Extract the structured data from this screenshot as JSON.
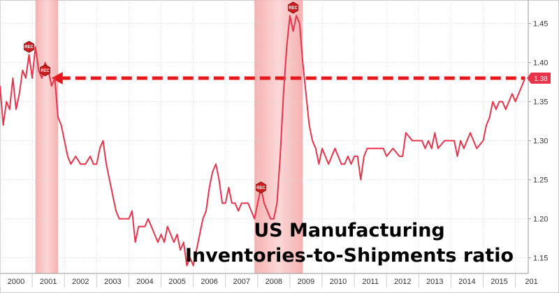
{
  "chart_data": {
    "type": "line",
    "title_lines": [
      "US Manufacturing",
      "Inventories-to-Shipments ratio"
    ],
    "xlabel": "",
    "ylabel": "",
    "x_tick_labels": [
      "2000",
      "2001",
      "2002",
      "2003",
      "2004",
      "2005",
      "2006",
      "2007",
      "2008",
      "2009",
      "2010",
      "2011",
      "2012",
      "2013",
      "2014",
      "2015",
      "201"
    ],
    "xlim": [
      2000.0,
      2016.4
    ],
    "ylim": [
      1.13,
      1.48
    ],
    "y_ticks": [
      1.15,
      1.2,
      1.25,
      1.3,
      1.35,
      1.4,
      1.45
    ],
    "y_tick_labels": [
      "1.15",
      "1.20",
      "1.25",
      "1.30",
      "1.35",
      "1.40",
      "1.45"
    ],
    "grid": true,
    "recessions": [
      {
        "start": 2001.1,
        "end": 2001.8
      },
      {
        "start": 2007.9,
        "end": 2009.4
      }
    ],
    "recession_markers": [
      {
        "label": "REC",
        "x": 2000.9,
        "y": 1.42
      },
      {
        "label": "REC",
        "x": 2001.4,
        "y": 1.39
      },
      {
        "label": "REC",
        "x": 2008.1,
        "y": 1.24
      },
      {
        "label": "REC",
        "x": 2009.1,
        "y": 1.48
      }
    ],
    "reference_line": {
      "y": 1.38,
      "x_start": 2001.6,
      "x_end": 2016.3,
      "style": "dashed-arrow",
      "color": "#e31a1c"
    },
    "last_value_label": "1.38",
    "series": [
      {
        "color": "#e8344a",
        "x": [
          2000.0,
          2000.1,
          2000.2,
          2000.3,
          2000.4,
          2000.5,
          2000.6,
          2000.7,
          2000.8,
          2000.9,
          2001.0,
          2001.1,
          2001.2,
          2001.3,
          2001.4,
          2001.5,
          2001.6,
          2001.7,
          2001.8,
          2001.9,
          2002.0,
          2002.1,
          2002.2,
          2002.35,
          2002.5,
          2002.65,
          2002.8,
          2002.9,
          2003.0,
          2003.1,
          2003.2,
          2003.3,
          2003.4,
          2003.5,
          2003.6,
          2003.7,
          2003.8,
          2003.9,
          2004.0,
          2004.1,
          2004.2,
          2004.3,
          2004.4,
          2004.5,
          2004.6,
          2004.7,
          2004.8,
          2004.9,
          2005.0,
          2005.1,
          2005.2,
          2005.3,
          2005.4,
          2005.5,
          2005.6,
          2005.7,
          2005.8,
          2005.9,
          2006.0,
          2006.1,
          2006.2,
          2006.3,
          2006.4,
          2006.5,
          2006.6,
          2006.7,
          2006.8,
          2006.9,
          2007.0,
          2007.1,
          2007.2,
          2007.3,
          2007.4,
          2007.5,
          2007.6,
          2007.7,
          2007.8,
          2007.9,
          2008.0,
          2008.1,
          2008.2,
          2008.3,
          2008.4,
          2008.5,
          2008.6,
          2008.7,
          2008.8,
          2008.9,
          2009.0,
          2009.1,
          2009.2,
          2009.3,
          2009.4,
          2009.5,
          2009.6,
          2009.7,
          2009.8,
          2009.9,
          2010.0,
          2010.1,
          2010.2,
          2010.3,
          2010.4,
          2010.5,
          2010.6,
          2010.7,
          2010.8,
          2010.9,
          2011.0,
          2011.1,
          2011.2,
          2011.3,
          2011.4,
          2011.5,
          2011.6,
          2011.8,
          2011.9,
          2012.0,
          2012.2,
          2012.4,
          2012.5,
          2012.6,
          2012.8,
          2013.0,
          2013.1,
          2013.2,
          2013.3,
          2013.4,
          2013.5,
          2013.6,
          2013.8,
          2014.0,
          2014.1,
          2014.2,
          2014.3,
          2014.4,
          2014.5,
          2014.6,
          2014.8,
          2015.0,
          2015.1,
          2015.2,
          2015.3,
          2015.4,
          2015.5,
          2015.6,
          2015.7,
          2015.8,
          2015.9,
          2016.0,
          2016.1,
          2016.2,
          2016.3
        ],
        "y": [
          1.37,
          1.32,
          1.35,
          1.34,
          1.38,
          1.34,
          1.36,
          1.39,
          1.38,
          1.41,
          1.38,
          1.42,
          1.39,
          1.38,
          1.4,
          1.39,
          1.37,
          1.38,
          1.33,
          1.32,
          1.3,
          1.28,
          1.27,
          1.28,
          1.27,
          1.27,
          1.28,
          1.27,
          1.27,
          1.29,
          1.3,
          1.27,
          1.25,
          1.23,
          1.21,
          1.2,
          1.2,
          1.2,
          1.2,
          1.21,
          1.17,
          1.19,
          1.19,
          1.19,
          1.2,
          1.19,
          1.18,
          1.17,
          1.18,
          1.17,
          1.19,
          1.18,
          1.17,
          1.18,
          1.16,
          1.17,
          1.14,
          1.15,
          1.14,
          1.16,
          1.18,
          1.2,
          1.21,
          1.24,
          1.26,
          1.27,
          1.25,
          1.22,
          1.22,
          1.24,
          1.22,
          1.22,
          1.21,
          1.22,
          1.22,
          1.22,
          1.21,
          1.2,
          1.22,
          1.24,
          1.22,
          1.21,
          1.2,
          1.2,
          1.22,
          1.28,
          1.36,
          1.42,
          1.46,
          1.44,
          1.46,
          1.45,
          1.4,
          1.36,
          1.32,
          1.3,
          1.29,
          1.27,
          1.29,
          1.28,
          1.27,
          1.28,
          1.29,
          1.28,
          1.27,
          1.27,
          1.28,
          1.27,
          1.28,
          1.28,
          1.25,
          1.28,
          1.29,
          1.29,
          1.29,
          1.29,
          1.29,
          1.28,
          1.29,
          1.28,
          1.28,
          1.31,
          1.3,
          1.3,
          1.3,
          1.29,
          1.3,
          1.29,
          1.31,
          1.29,
          1.3,
          1.3,
          1.3,
          1.28,
          1.3,
          1.29,
          1.3,
          1.31,
          1.29,
          1.3,
          1.32,
          1.33,
          1.35,
          1.34,
          1.35,
          1.35,
          1.34,
          1.35,
          1.36,
          1.35,
          1.36,
          1.37,
          1.38
        ]
      }
    ]
  }
}
